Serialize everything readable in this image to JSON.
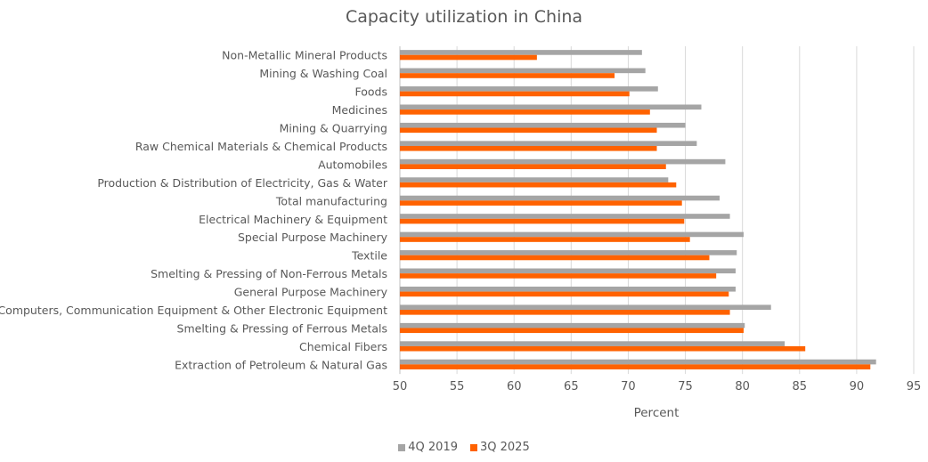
{
  "chart_data": {
    "type": "bar",
    "orientation": "horizontal",
    "title": "Capacity utilization in China",
    "xlabel": "Percent",
    "ylabel": "",
    "xlim": [
      50,
      95
    ],
    "xticks": [
      50,
      55,
      60,
      65,
      70,
      75,
      80,
      85,
      90,
      95
    ],
    "grid": true,
    "legend_position": "bottom",
    "categories": [
      "Non-Metallic Mineral Products",
      "Mining & Washing Coal",
      "Foods",
      "Medicines",
      "Mining & Quarrying",
      "Raw Chemical Materials & Chemical Products",
      "Automobiles",
      "Production & Distribution of Electricity, Gas & Water",
      "Total manufacturing",
      "Electrical Machinery & Equipment",
      "Special Purpose Machinery",
      "Textile",
      "Smelting & Pressing of Non-Ferrous Metals",
      "General Purpose Machinery",
      "Computers, Communication Equipment & Other Electronic Equipment",
      "Smelting & Pressing of Ferrous Metals",
      "Chemical Fibers",
      "Extraction of Petroleum & Natural Gas"
    ],
    "series": [
      {
        "name": "4Q 2019",
        "color": "#a5a5a5",
        "values": [
          71.2,
          71.5,
          72.6,
          76.4,
          75.0,
          76.0,
          78.5,
          73.5,
          78.0,
          78.9,
          80.1,
          79.5,
          79.4,
          79.4,
          82.5,
          80.2,
          83.7,
          91.7
        ]
      },
      {
        "name": "3Q 2025",
        "color": "#ff6200",
        "values": [
          62.0,
          68.8,
          70.1,
          71.9,
          72.5,
          72.5,
          73.3,
          74.2,
          74.7,
          74.9,
          75.4,
          77.1,
          77.7,
          78.8,
          78.9,
          80.1,
          85.5,
          91.2
        ]
      }
    ],
    "gridline_color": "#d9d9d9"
  }
}
